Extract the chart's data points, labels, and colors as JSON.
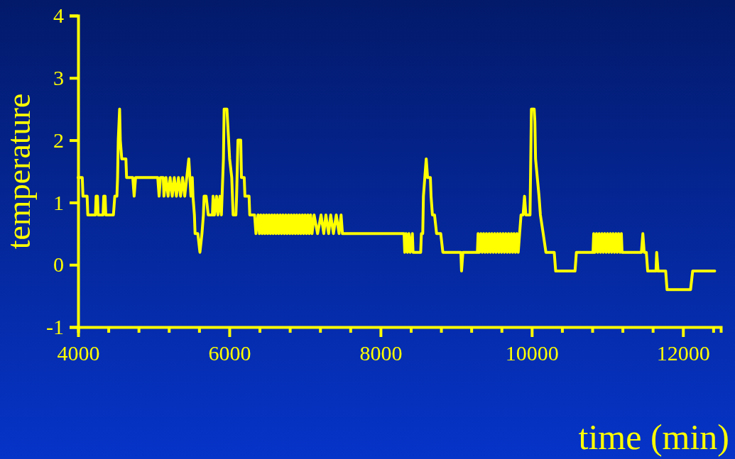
{
  "chart_data": {
    "type": "line",
    "xlabel": "time (min)",
    "ylabel": "temperature",
    "xlim": [
      4000,
      12500
    ],
    "ylim": [
      -1,
      4
    ],
    "xticks": [
      4000,
      {
        "value": 4400,
        "label": null
      },
      {
        "value": 4800,
        "label": null
      },
      {
        "value": 5200,
        "label": null
      },
      {
        "value": 5600,
        "label": null
      },
      6000,
      {
        "value": 6400,
        "label": null
      },
      {
        "value": 6800,
        "label": null
      },
      {
        "value": 7200,
        "label": null
      },
      {
        "value": 7600,
        "label": null
      },
      8000,
      {
        "value": 8400,
        "label": null
      },
      {
        "value": 8800,
        "label": null
      },
      {
        "value": 9200,
        "label": null
      },
      {
        "value": 9600,
        "label": null
      },
      10000,
      {
        "value": 10400,
        "label": null
      },
      {
        "value": 10800,
        "label": null
      },
      {
        "value": 11200,
        "label": null
      },
      {
        "value": 11600,
        "label": null
      },
      12000,
      {
        "value": 12400,
        "label": null
      }
    ],
    "yticks": [
      -1,
      0,
      1,
      2,
      3,
      4
    ],
    "grid": false,
    "marker": "none",
    "line_style": "solid",
    "x": [
      4000,
      4055,
      4064,
      4119,
      4128,
      4229,
      4238,
      4256,
      4265,
      4330,
      4339,
      4357,
      4366,
      4467,
      4485,
      4513,
      4522,
      4531,
      4549,
      4558,
      4577,
      4632,
      4641,
      4723,
      4741,
      4760,
      5053,
      5071,
      5089,
      5126,
      5135,
      5162,
      5190,
      5217,
      5245,
      5272,
      5300,
      5327,
      5355,
      5382,
      5410,
      5437,
      5464,
      5492,
      5510,
      5519,
      5538,
      5547,
      5583,
      5611,
      5638,
      5657,
      5666,
      5693,
      5721,
      5776,
      5785,
      5803,
      5831,
      5849,
      5876,
      5895,
      5904,
      5922,
      5931,
      5968,
      5977,
      6004,
      6032,
      6050,
      6087,
      6096,
      6114,
      6151,
      6160,
      6197,
      6206,
      6261,
      6270,
      6334,
      6352,
      6380,
      6398,
      6416,
      6435,
      6453,
      6471,
      6490,
      6508,
      6526,
      6545,
      6563,
      6581,
      6599,
      6618,
      6636,
      6654,
      6673,
      6691,
      6709,
      6728,
      6746,
      6764,
      6783,
      6801,
      6819,
      6837,
      6856,
      6874,
      6892,
      6911,
      6929,
      6947,
      6966,
      6984,
      7002,
      7021,
      7039,
      7057,
      7075,
      7094,
      7121,
      7167,
      7213,
      7249,
      7277,
      7313,
      7341,
      7377,
      7414,
      7451,
      7478,
      7496,
      8311,
      8320,
      8338,
      8357,
      8375,
      8393,
      8421,
      8430,
      8531,
      8540,
      8558,
      8567,
      8604,
      8622,
      8659,
      8668,
      8686,
      8714,
      8741,
      8796,
      8824,
      9062,
      9071,
      9089,
      9281,
      9290,
      9308,
      9327,
      9345,
      9363,
      9382,
      9400,
      9418,
      9437,
      9455,
      9473,
      9492,
      9510,
      9528,
      9547,
      9565,
      9583,
      9601,
      9620,
      9638,
      9656,
      9675,
      9693,
      9711,
      9730,
      9748,
      9766,
      9785,
      9803,
      9821,
      9839,
      9858,
      9885,
      9904,
      9922,
      9977,
      9995,
      10032,
      10041,
      10050,
      10096,
      10114,
      10151,
      10187,
      10297,
      10316,
      10572,
      10590,
      10810,
      10819,
      10837,
      10856,
      10874,
      10892,
      10911,
      10929,
      10947,
      10965,
      10984,
      11002,
      11020,
      11039,
      11057,
      11075,
      11094,
      11112,
      11130,
      11148,
      11167,
      11185,
      11194,
      11450,
      11469,
      11487,
      11515,
      11533,
      11643,
      11652,
      11670,
      11771,
      11789,
      12100,
      12128,
      12420
    ],
    "series": [
      {
        "color": "#ffff00",
        "values": [
          1.4,
          1.4,
          1.1,
          1.1,
          0.8,
          0.8,
          1.1,
          1.1,
          0.8,
          0.8,
          1.1,
          1.1,
          0.8,
          0.8,
          1.1,
          1.1,
          1.4,
          2.0,
          2.5,
          2.0,
          1.7,
          1.7,
          1.4,
          1.4,
          1.1,
          1.4,
          1.4,
          1.1,
          1.4,
          1.4,
          1.1,
          1.4,
          1.1,
          1.4,
          1.1,
          1.4,
          1.1,
          1.4,
          1.1,
          1.4,
          1.1,
          1.4,
          1.7,
          1.1,
          1.4,
          1.1,
          0.8,
          0.5,
          0.5,
          0.2,
          0.5,
          0.8,
          1.1,
          1.1,
          0.8,
          0.8,
          1.1,
          0.8,
          1.1,
          0.8,
          1.1,
          0.8,
          1.1,
          1.7,
          2.5,
          2.5,
          2.3,
          1.7,
          1.4,
          0.8,
          0.8,
          1.1,
          2.0,
          2.0,
          1.4,
          1.4,
          1.1,
          1.1,
          0.8,
          0.8,
          0.5,
          0.8,
          0.5,
          0.8,
          0.5,
          0.8,
          0.5,
          0.8,
          0.5,
          0.8,
          0.5,
          0.8,
          0.5,
          0.8,
          0.5,
          0.8,
          0.5,
          0.8,
          0.5,
          0.8,
          0.5,
          0.8,
          0.5,
          0.8,
          0.5,
          0.8,
          0.5,
          0.8,
          0.5,
          0.8,
          0.5,
          0.8,
          0.5,
          0.8,
          0.5,
          0.8,
          0.5,
          0.8,
          0.5,
          0.8,
          0.5,
          0.8,
          0.5,
          0.8,
          0.5,
          0.8,
          0.5,
          0.8,
          0.5,
          0.8,
          0.5,
          0.8,
          0.5,
          0.5,
          0.2,
          0.5,
          0.2,
          0.5,
          0.2,
          0.5,
          0.2,
          0.2,
          0.5,
          0.5,
          1.1,
          1.7,
          1.4,
          1.4,
          1.1,
          0.8,
          0.8,
          0.5,
          0.5,
          0.2,
          0.2,
          -0.1,
          0.2,
          0.2,
          0.5,
          0.2,
          0.5,
          0.2,
          0.5,
          0.2,
          0.5,
          0.2,
          0.5,
          0.2,
          0.5,
          0.2,
          0.5,
          0.2,
          0.5,
          0.2,
          0.5,
          0.2,
          0.5,
          0.2,
          0.5,
          0.2,
          0.5,
          0.2,
          0.5,
          0.2,
          0.5,
          0.2,
          0.5,
          0.2,
          0.5,
          0.8,
          0.8,
          1.1,
          0.8,
          0.8,
          2.5,
          2.5,
          2.3,
          1.7,
          1.1,
          0.8,
          0.5,
          0.2,
          0.2,
          -0.1,
          -0.1,
          0.2,
          0.2,
          0.5,
          0.2,
          0.5,
          0.2,
          0.5,
          0.2,
          0.5,
          0.2,
          0.5,
          0.2,
          0.5,
          0.2,
          0.5,
          0.2,
          0.5,
          0.2,
          0.5,
          0.2,
          0.5,
          0.2,
          0.5,
          0.2,
          0.2,
          0.5,
          0.2,
          0.2,
          -0.1,
          -0.1,
          0.2,
          -0.1,
          -0.1,
          -0.4,
          -0.4,
          -0.1,
          -0.1
        ]
      }
    ]
  }
}
